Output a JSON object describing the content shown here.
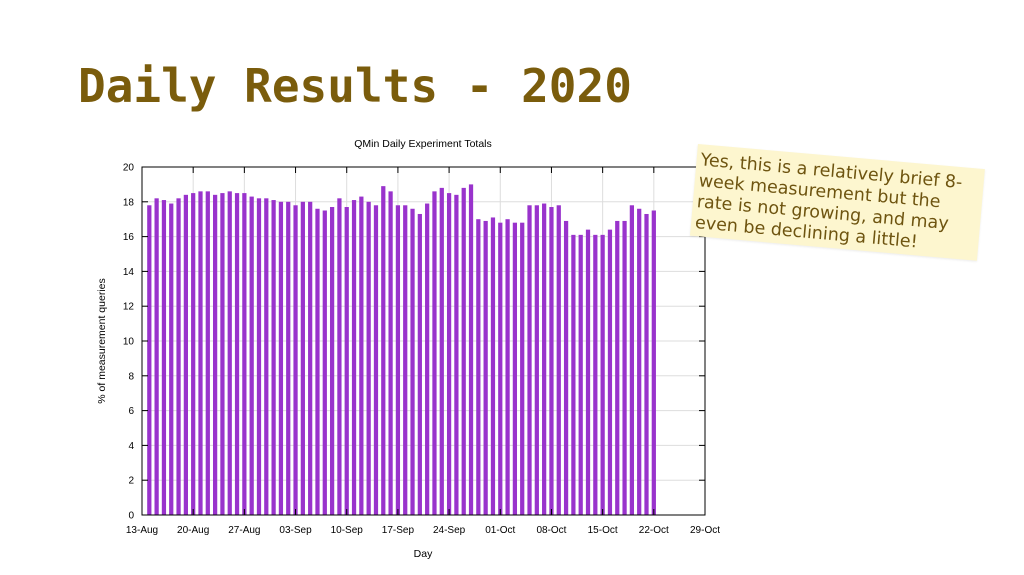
{
  "slide": {
    "title": "Daily Results - 2020",
    "note": "Yes, this is a relatively brief 8-week measurement but the rate is not growing, and may even be declining a little!"
  },
  "colors": {
    "title": "#7a5c0c",
    "bar": "#9933cc",
    "note_bg": "#fdf6cf",
    "note_text": "#6e5410"
  },
  "chart_data": {
    "type": "bar",
    "title": "QMin Daily Experiment Totals",
    "xlabel": "Day",
    "ylabel": "% of measurement queries",
    "ylim": [
      0,
      20
    ],
    "yticks": [
      0,
      2,
      4,
      6,
      8,
      10,
      12,
      14,
      16,
      18,
      20
    ],
    "xticks": [
      "13-Aug",
      "20-Aug",
      "27-Aug",
      "03-Sep",
      "10-Sep",
      "17-Sep",
      "24-Sep",
      "01-Oct",
      "08-Oct",
      "15-Oct",
      "22-Oct",
      "29-Oct"
    ],
    "grid": true,
    "legend": "none",
    "series": [
      {
        "start": "2020-08-14",
        "values": [
          17.8,
          18.2,
          18.1,
          17.9,
          18.2,
          18.4,
          18.5,
          18.6,
          18.6,
          18.4,
          18.5,
          18.6,
          18.5,
          18.5,
          18.3,
          18.2,
          18.2,
          18.1,
          18.0,
          18.0,
          17.8,
          18.0,
          18.0,
          17.6,
          17.5,
          17.7,
          18.2,
          17.7,
          18.1,
          18.3,
          18.0,
          17.8,
          18.9,
          18.6,
          17.8,
          17.8,
          17.6,
          17.3,
          17.9,
          18.6,
          18.8,
          18.5,
          18.4,
          18.8,
          19.0,
          17.0,
          16.9,
          17.1,
          16.8,
          17.0,
          16.8,
          16.8,
          17.8,
          17.8,
          17.9,
          17.7,
          17.8,
          16.9,
          16.1,
          16.1,
          16.4,
          16.1,
          16.1,
          16.4,
          16.9,
          16.9,
          17.8,
          17.6,
          17.3,
          17.5
        ]
      }
    ]
  }
}
